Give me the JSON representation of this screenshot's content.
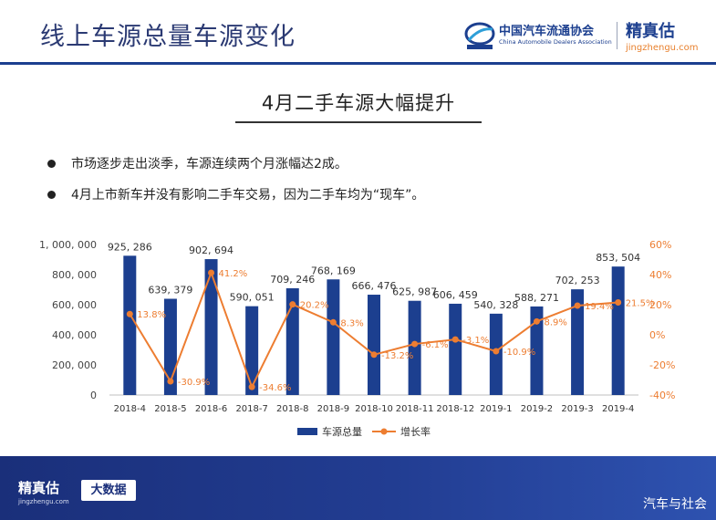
{
  "header": {
    "title": "线上车源总量车源变化",
    "cada_logo_cn": "中国汽车流通协会",
    "cada_logo_en": "China Automobile Dealers Association",
    "jzg_logo_cn": "精真估",
    "jzg_logo_url": "jingzhengu.com"
  },
  "subtitle": "4月二手车源大幅提升",
  "bullets": [
    "市场逐步走出淡季，车源连续两个月涨幅达2成。",
    "4月上市新车并没有影响二手车交易，因为二手车均为“现车”。"
  ],
  "footer": {
    "logo_cn": "精真估",
    "logo_url": "jingzhengu.com",
    "badge": "大数据",
    "watermark": "汽车与社会"
  },
  "colors": {
    "bar": "#1c3f8f",
    "line": "#ed7d31",
    "title": "#2b3a73"
  },
  "chart_data": {
    "type": "bar",
    "categories": [
      "2018-4",
      "2018-5",
      "2018-6",
      "2018-7",
      "2018-8",
      "2018-9",
      "2018-10",
      "2018-11",
      "2018-12",
      "2019-1",
      "2019-2",
      "2019-3",
      "2019-4"
    ],
    "series": [
      {
        "name": "车源总量",
        "type": "bar",
        "axis": "left",
        "values": [
          925286,
          639379,
          902694,
          590051,
          709246,
          768169,
          666476,
          625987,
          606459,
          540328,
          588271,
          702253,
          853504
        ],
        "labels": [
          "925, 286",
          "639, 379",
          "902, 694",
          "590, 051",
          "709, 246",
          "768, 169",
          "666, 476",
          "625, 987",
          "606, 459",
          "540, 328",
          "588, 271",
          "702, 253",
          "853, 504"
        ]
      },
      {
        "name": "增长率",
        "type": "line",
        "axis": "right",
        "values": [
          13.8,
          -30.9,
          41.2,
          -34.6,
          20.2,
          8.3,
          -13.2,
          -6.1,
          -3.1,
          -10.9,
          8.9,
          19.4,
          21.5
        ],
        "labels": [
          "13.8%",
          "-30.9%",
          "41.2%",
          "-34.6%",
          "20.2%",
          "8.3%",
          "-13.2%",
          "-6.1%",
          "-3.1%",
          "-10.9%",
          "8.9%",
          "19.4%",
          "21.5%"
        ]
      }
    ],
    "y_left": {
      "range": [
        0,
        1000000
      ],
      "ticks": [
        0,
        200000,
        400000,
        600000,
        800000,
        1000000
      ],
      "tick_labels": [
        "0",
        "200, 000",
        "400, 000",
        "600, 000",
        "800, 000",
        "1, 000, 000"
      ]
    },
    "y_right": {
      "range": [
        -40,
        60
      ],
      "ticks": [
        -40,
        -20,
        0,
        20,
        40,
        60
      ],
      "tick_labels": [
        "-40%",
        "-20%",
        "0%",
        "20%",
        "40%",
        "60%"
      ]
    },
    "grid": false,
    "legend": "bottom"
  }
}
